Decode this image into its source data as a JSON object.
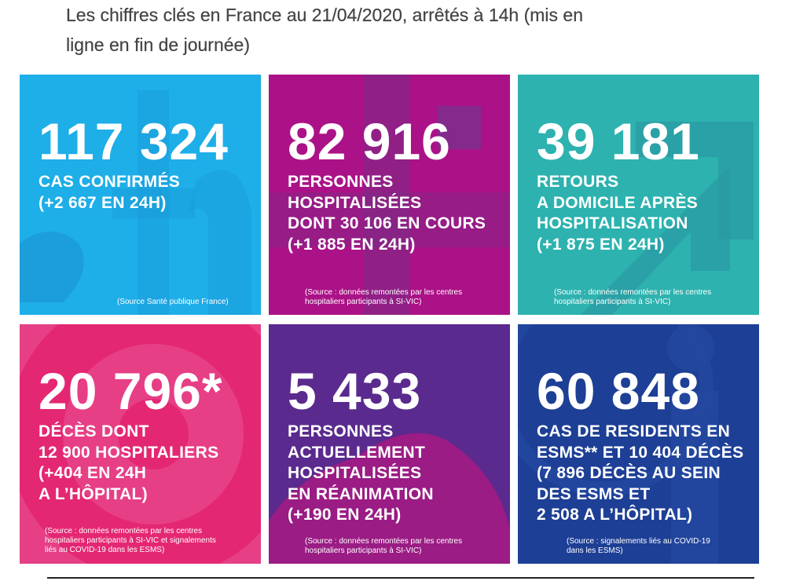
{
  "heading": {
    "line1": "Les chiffres clés en France au 21/04/2020, arrêtés à 14h (mis en",
    "line2": "ligne en fin de journée)"
  },
  "tiles": [
    {
      "number": "117 324",
      "label": [
        "CAS CONFIRMÉS",
        "(+2 667 EN 24H)"
      ],
      "source": [
        "(Source Santé publique France)"
      ],
      "color": "#1eaee8"
    },
    {
      "number": "82 916",
      "label": [
        "PERSONNES",
        "HOSPITALISÉES",
        "DONT 30 106 EN COURS",
        "(+1 885 EN 24H)"
      ],
      "source": [
        "(Source : données remontées par les centres",
        "hospitaliers participants à SI-VIC)"
      ],
      "color": "#b1148d"
    },
    {
      "number": "39 181",
      "label": [
        "RETOURS",
        "A DOMICILE APRÈS",
        "HOSPITALISATION",
        "(+1 875 EN 24H)"
      ],
      "source": [
        "(Source : données remontées par les centres",
        "hospitaliers participants à SI-VIC)"
      ],
      "color": "#2fb7b3"
    },
    {
      "number": "20 796*",
      "label": [
        "DÉCÈS DONT",
        "12 900 HOSPITALIERS",
        "(+404 EN 24H",
        "A L’HÔPITAL)"
      ],
      "source": [
        "(Source : données remontées par les centres",
        "hospitaliers participants à SI-VIC et signalements",
        "liés au COVID-19 dans les ESMS)"
      ],
      "color": "#e63f86"
    },
    {
      "number": "5 433",
      "label": [
        "PERSONNES",
        "ACTUELLEMENT",
        "HOSPITALISÉES",
        "EN RÉANIMATION",
        "(+190 EN 24H)"
      ],
      "source": [
        "(Source : données remontées par les centres",
        "hospitaliers participants à SI-VIC)"
      ],
      "color": "#5a2a8e"
    },
    {
      "number": "60 848",
      "label": [
        "CAS DE RESIDENTS EN",
        "ESMS** ET 10 404 DÉCÈS",
        "(7 896 DÉCÈS AU SEIN",
        "DES ESMS ET",
        "2 508 A L’HÔPITAL)"
      ],
      "source": [
        "(Source : signalements liés au COVID-19",
        "dans les ESMS)"
      ],
      "color": "#1d3f95"
    }
  ]
}
